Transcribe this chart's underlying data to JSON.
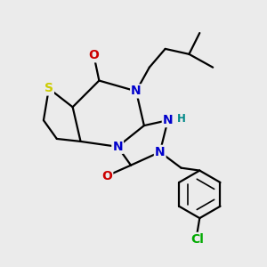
{
  "bg_color": "#ebebeb",
  "atom_colors": {
    "S": "#cccc00",
    "N": "#0000cc",
    "O": "#cc0000",
    "C": "#000000",
    "H": "#008888",
    "Cl": "#00aa00"
  },
  "bond_color": "#000000",
  "bond_width": 1.6
}
